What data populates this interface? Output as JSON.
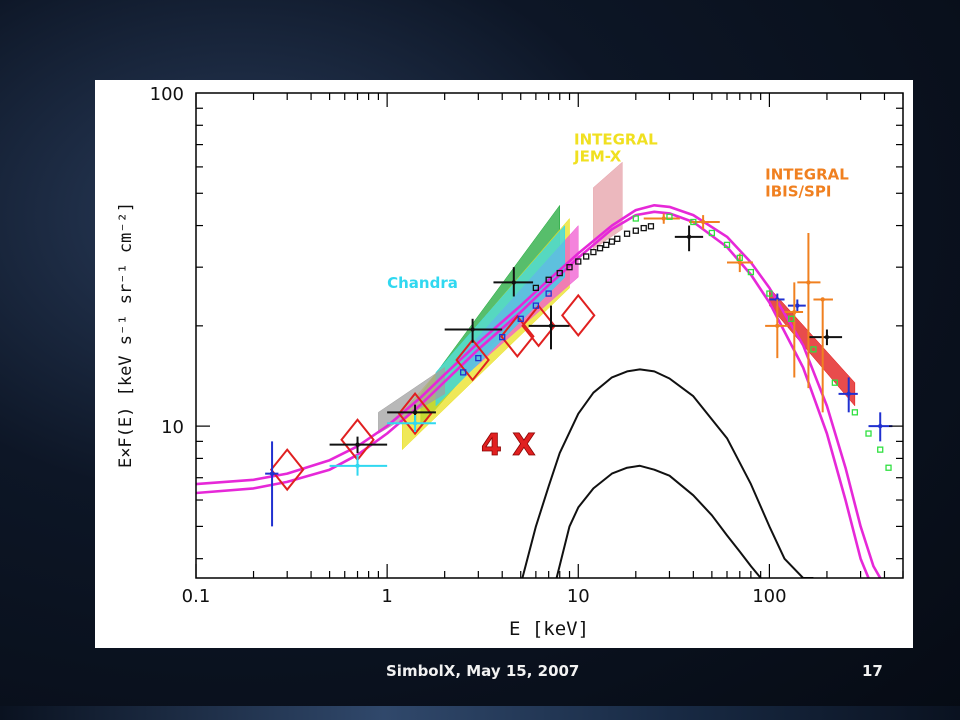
{
  "slide": {
    "footer": "SimbolX, May 15, 2007",
    "page_number": "17",
    "accent_colors": {
      "magenta_model": "#e628d8",
      "annotation_red": "#e02020",
      "integral_jemx": "#f0e020",
      "integral_ibis": "#f08020",
      "chandra": "#30d8f0"
    }
  },
  "chart_data": {
    "type": "scatter",
    "xlabel": "E  [keV]",
    "ylabel": "E×F(E)  [keV s⁻¹ sr⁻¹ cm⁻²]",
    "x_scale": "log",
    "y_scale": "log",
    "xlim": [
      0.1,
      500
    ],
    "ylim": [
      3.5,
      100
    ],
    "x_ticks": [
      {
        "value": 0.1,
        "label": "0.1"
      },
      {
        "value": 1,
        "label": "1"
      },
      {
        "value": 10,
        "label": "10"
      },
      {
        "value": 100,
        "label": "100"
      }
    ],
    "y_ticks": [
      {
        "value": 10,
        "label": "10"
      },
      {
        "value": 100,
        "label": "100"
      }
    ],
    "annotations": [
      {
        "text": "INTEGRAL\nJEM-X",
        "color": "#f0e020",
        "x": 9.5,
        "y": 70
      },
      {
        "text": "INTEGRAL\nIBIS/SPI",
        "color": "#f08020",
        "x": 95,
        "y": 55
      },
      {
        "text": "Chandra",
        "color": "#30d8f0",
        "x": 1.0,
        "y": 26
      },
      {
        "text": "4 X",
        "color": "#e02020",
        "x": 3.1,
        "y": 8.2
      }
    ],
    "series": [
      {
        "kind": "model_curve",
        "color": "#e628d8",
        "x": [
          0.1,
          0.2,
          0.3,
          0.5,
          0.7,
          1,
          1.5,
          2,
          3,
          5,
          7,
          10,
          15,
          20,
          25,
          30,
          40,
          60,
          80,
          100,
          150,
          200,
          250,
          300,
          350,
          380
        ],
        "y": [
          6.7,
          6.9,
          7.2,
          7.9,
          8.7,
          10.0,
          12.2,
          14.3,
          17.8,
          23.0,
          27.5,
          33.0,
          40.0,
          44.5,
          46.0,
          45.5,
          43.0,
          37.0,
          31.0,
          26.0,
          17.5,
          11.5,
          7.5,
          5.0,
          3.8,
          3.5
        ]
      },
      {
        "kind": "model_curve",
        "color": "#e628d8",
        "x": [
          0.1,
          0.2,
          0.3,
          0.5,
          0.7,
          1,
          1.5,
          2,
          3,
          5,
          7,
          10,
          15,
          20,
          25,
          30,
          40,
          60,
          80,
          100,
          150,
          200,
          250,
          300,
          330
        ],
        "y": [
          6.3,
          6.5,
          6.8,
          7.4,
          8.2,
          9.5,
          11.6,
          13.6,
          17.0,
          22.0,
          26.5,
          32.0,
          39.0,
          43.0,
          44.0,
          43.5,
          41.0,
          34.5,
          28.5,
          23.5,
          15.0,
          9.5,
          6.0,
          4.0,
          3.5
        ]
      },
      {
        "kind": "component_curve",
        "color": "#111111",
        "x": [
          5.1,
          6,
          7,
          8,
          10,
          12,
          15,
          18,
          21,
          25,
          30,
          40,
          60,
          80,
          100,
          120,
          150,
          170
        ],
        "y": [
          3.5,
          5.0,
          6.6,
          8.3,
          10.9,
          12.6,
          14.0,
          14.6,
          14.8,
          14.6,
          13.9,
          12.3,
          9.2,
          6.7,
          5.0,
          4.0,
          3.5,
          3.5
        ]
      },
      {
        "kind": "component_curve",
        "color": "#111111",
        "x": [
          7.7,
          9,
          10,
          12,
          15,
          18,
          21,
          25,
          30,
          40,
          50,
          60,
          70,
          80,
          90
        ],
        "y": [
          3.5,
          5.0,
          5.7,
          6.5,
          7.2,
          7.5,
          7.6,
          7.4,
          7.1,
          6.2,
          5.4,
          4.7,
          4.2,
          3.8,
          3.5
        ]
      },
      {
        "kind": "diamonds_red",
        "color": "#e02020",
        "points": [
          [
            0.3,
            7.4
          ],
          [
            0.7,
            9.1
          ],
          [
            1.4,
            10.9
          ],
          [
            2.8,
            15.8
          ],
          [
            4.8,
            18.6
          ],
          [
            6.2,
            20.0
          ],
          [
            10.0,
            21.5
          ]
        ]
      },
      {
        "kind": "error_points_black",
        "color": "#111111",
        "points": [
          {
            "x": 0.7,
            "y": 8.8,
            "xlo": 0.5,
            "xhi": 1.0,
            "ylo": 8.3,
            "yhi": 9.3
          },
          {
            "x": 1.4,
            "y": 11.0,
            "xlo": 1.0,
            "xhi": 1.8,
            "ylo": 10.4,
            "yhi": 11.6
          },
          {
            "x": 2.8,
            "y": 19.5,
            "xlo": 2.0,
            "xhi": 4.0,
            "ylo": 17.8,
            "yhi": 21.0
          },
          {
            "x": 4.6,
            "y": 27.0,
            "xlo": 3.6,
            "xhi": 5.8,
            "ylo": 24.5,
            "yhi": 30.0
          },
          {
            "x": 7.2,
            "y": 20.0,
            "xlo": 5.5,
            "xhi": 9.0,
            "ylo": 17.0,
            "yhi": 23.0
          },
          {
            "x": 38.0,
            "y": 37.0,
            "xlo": 32.0,
            "xhi": 45.0,
            "ylo": 33.5,
            "yhi": 40.0
          },
          {
            "x": 200.0,
            "y": 18.5,
            "xlo": 160.0,
            "xhi": 240.0,
            "ylo": 17.5,
            "yhi": 19.5
          }
        ]
      },
      {
        "kind": "error_points_blue",
        "color": "#2030d0",
        "points": [
          {
            "x": 0.25,
            "y": 7.2,
            "xlo": 0.23,
            "xhi": 0.27,
            "ylo": 5.0,
            "yhi": 9.0
          },
          {
            "x": 110.0,
            "y": 24.0,
            "xlo": 100.0,
            "xhi": 120.0,
            "ylo": 23.0,
            "yhi": 25.0
          },
          {
            "x": 140.0,
            "y": 23.0,
            "xlo": 125.0,
            "xhi": 155.0,
            "ylo": 22.0,
            "yhi": 24.0
          },
          {
            "x": 260.0,
            "y": 12.5,
            "xlo": 230.0,
            "xhi": 290.0,
            "ylo": 11.0,
            "yhi": 14.0
          },
          {
            "x": 380.0,
            "y": 10.0,
            "xlo": 330.0,
            "xhi": 440.0,
            "ylo": 9.0,
            "yhi": 11.0
          }
        ]
      },
      {
        "kind": "error_points_orange",
        "color": "#f08020",
        "points": [
          {
            "x": 110.0,
            "y": 20.0,
            "xlo": 95.0,
            "xhi": 125.0,
            "ylo": 16.0,
            "yhi": 24.0
          },
          {
            "x": 135.0,
            "y": 22.0,
            "xlo": 120.0,
            "xhi": 150.0,
            "ylo": 14.0,
            "yhi": 27.0
          },
          {
            "x": 160.0,
            "y": 27.0,
            "xlo": 140.0,
            "xhi": 185.0,
            "ylo": 13.0,
            "yhi": 38.0
          },
          {
            "x": 190.0,
            "y": 24.0,
            "xlo": 170.0,
            "xhi": 215.0,
            "ylo": 11.0,
            "yhi": 24.0
          },
          {
            "x": 45.0,
            "y": 41.0,
            "xlo": 38.0,
            "xhi": 55.0,
            "ylo": 39.0,
            "yhi": 43.0
          },
          {
            "x": 70.0,
            "y": 31.0,
            "xlo": 60.0,
            "xhi": 82.0,
            "ylo": 29.0,
            "yhi": 33.0
          },
          {
            "x": 28.0,
            "y": 42.0,
            "xlo": 22.0,
            "xhi": 34.0,
            "ylo": 40.5,
            "yhi": 43.5
          }
        ]
      },
      {
        "kind": "error_points_cyan",
        "color": "#30d8f0",
        "points": [
          {
            "x": 0.7,
            "y": 7.6,
            "xlo": 0.5,
            "xhi": 1.0,
            "ylo": 7.1,
            "yhi": 8.2
          },
          {
            "x": 1.4,
            "y": 10.2,
            "xlo": 1.0,
            "xhi": 1.8,
            "ylo": 9.6,
            "yhi": 10.8
          }
        ]
      },
      {
        "kind": "black_square_points",
        "color": "#111111",
        "x": [
          6,
          7,
          8,
          9,
          10,
          11,
          12,
          13,
          14,
          15,
          16,
          18,
          20,
          22,
          24
        ],
        "y": [
          26.0,
          27.5,
          28.8,
          30.0,
          31.2,
          32.3,
          33.3,
          34.2,
          35.0,
          35.8,
          36.5,
          37.8,
          38.6,
          39.3,
          39.8
        ]
      },
      {
        "kind": "green_points",
        "color": "#30e040",
        "x": [
          20,
          30,
          40,
          50,
          60,
          70,
          80,
          100,
          130,
          170,
          220,
          280,
          330,
          380,
          420
        ],
        "y": [
          42.0,
          42.5,
          41.0,
          38.0,
          35.0,
          32.0,
          29.0,
          25.0,
          21.0,
          17.0,
          13.5,
          11.0,
          9.5,
          8.5,
          7.5
        ]
      },
      {
        "kind": "blue_points",
        "color": "#2030d0",
        "x": [
          2.5,
          3,
          4,
          5,
          6,
          7
        ],
        "y": [
          14.5,
          16.0,
          18.5,
          21.0,
          23.0,
          25.0
        ]
      },
      {
        "kind": "band",
        "color": "#1fa83a",
        "name_shown": false,
        "x": [
          1.5,
          8.0
        ],
        "ylo": [
          10.0,
          30.0
        ],
        "yhi": [
          12.5,
          46.0
        ]
      },
      {
        "kind": "band",
        "color": "#e9e020",
        "x": [
          1.2,
          9.0
        ],
        "ylo": [
          8.5,
          26.0
        ],
        "yhi": [
          11.0,
          42.0
        ]
      },
      {
        "kind": "band",
        "color": "#f05ad0",
        "x": [
          2.5,
          10.0
        ],
        "ylo": [
          14.0,
          28.0
        ],
        "yhi": [
          16.5,
          40.0
        ]
      },
      {
        "kind": "band",
        "color": "#30d8f0",
        "x": [
          1.8,
          8.5
        ],
        "ylo": [
          11.5,
          28.0
        ],
        "yhi": [
          14.5,
          40.0
        ]
      },
      {
        "kind": "band",
        "color": "#a0a0a0",
        "x": [
          0.9,
          2.0
        ],
        "ylo": [
          9.5,
          12.5
        ],
        "yhi": [
          11.0,
          15.0
        ]
      },
      {
        "kind": "band",
        "color": "#e6a0a8",
        "x": [
          12.0,
          17.0
        ],
        "ylo": [
          34.0,
          39.0
        ],
        "yhi": [
          52.0,
          62.0
        ]
      },
      {
        "kind": "band",
        "color": "#e01010",
        "x": [
          100.0,
          280.0
        ],
        "ylo": [
          23.0,
          11.5
        ],
        "yhi": [
          26.0,
          13.5
        ]
      }
    ]
  }
}
